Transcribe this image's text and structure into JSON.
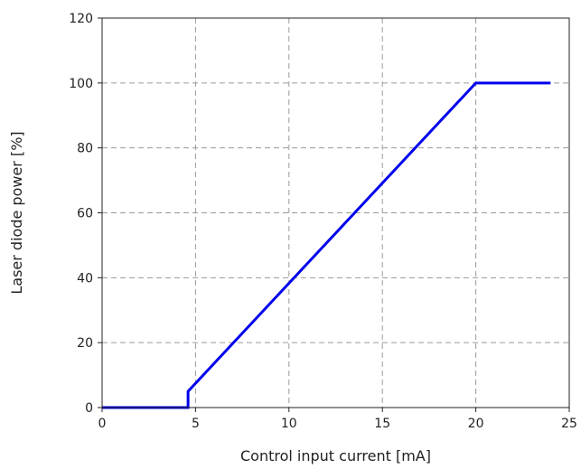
{
  "chart_data": {
    "type": "line",
    "title": "",
    "xlabel": "Control input current [mA]",
    "ylabel": "Laser diode power [%]",
    "xlim": [
      0,
      25
    ],
    "ylim": [
      0,
      120
    ],
    "xticks": [
      0,
      5,
      10,
      15,
      20,
      25
    ],
    "yticks": [
      0,
      20,
      40,
      60,
      80,
      100,
      120
    ],
    "grid": true,
    "colors": {
      "line": "#0000ee",
      "grid": "#9a9a9a",
      "axis": "#222222"
    },
    "series": [
      {
        "x": [
          0,
          4.6,
          4.6,
          20,
          24
        ],
        "y": [
          0,
          0,
          5,
          100,
          100
        ]
      }
    ]
  }
}
